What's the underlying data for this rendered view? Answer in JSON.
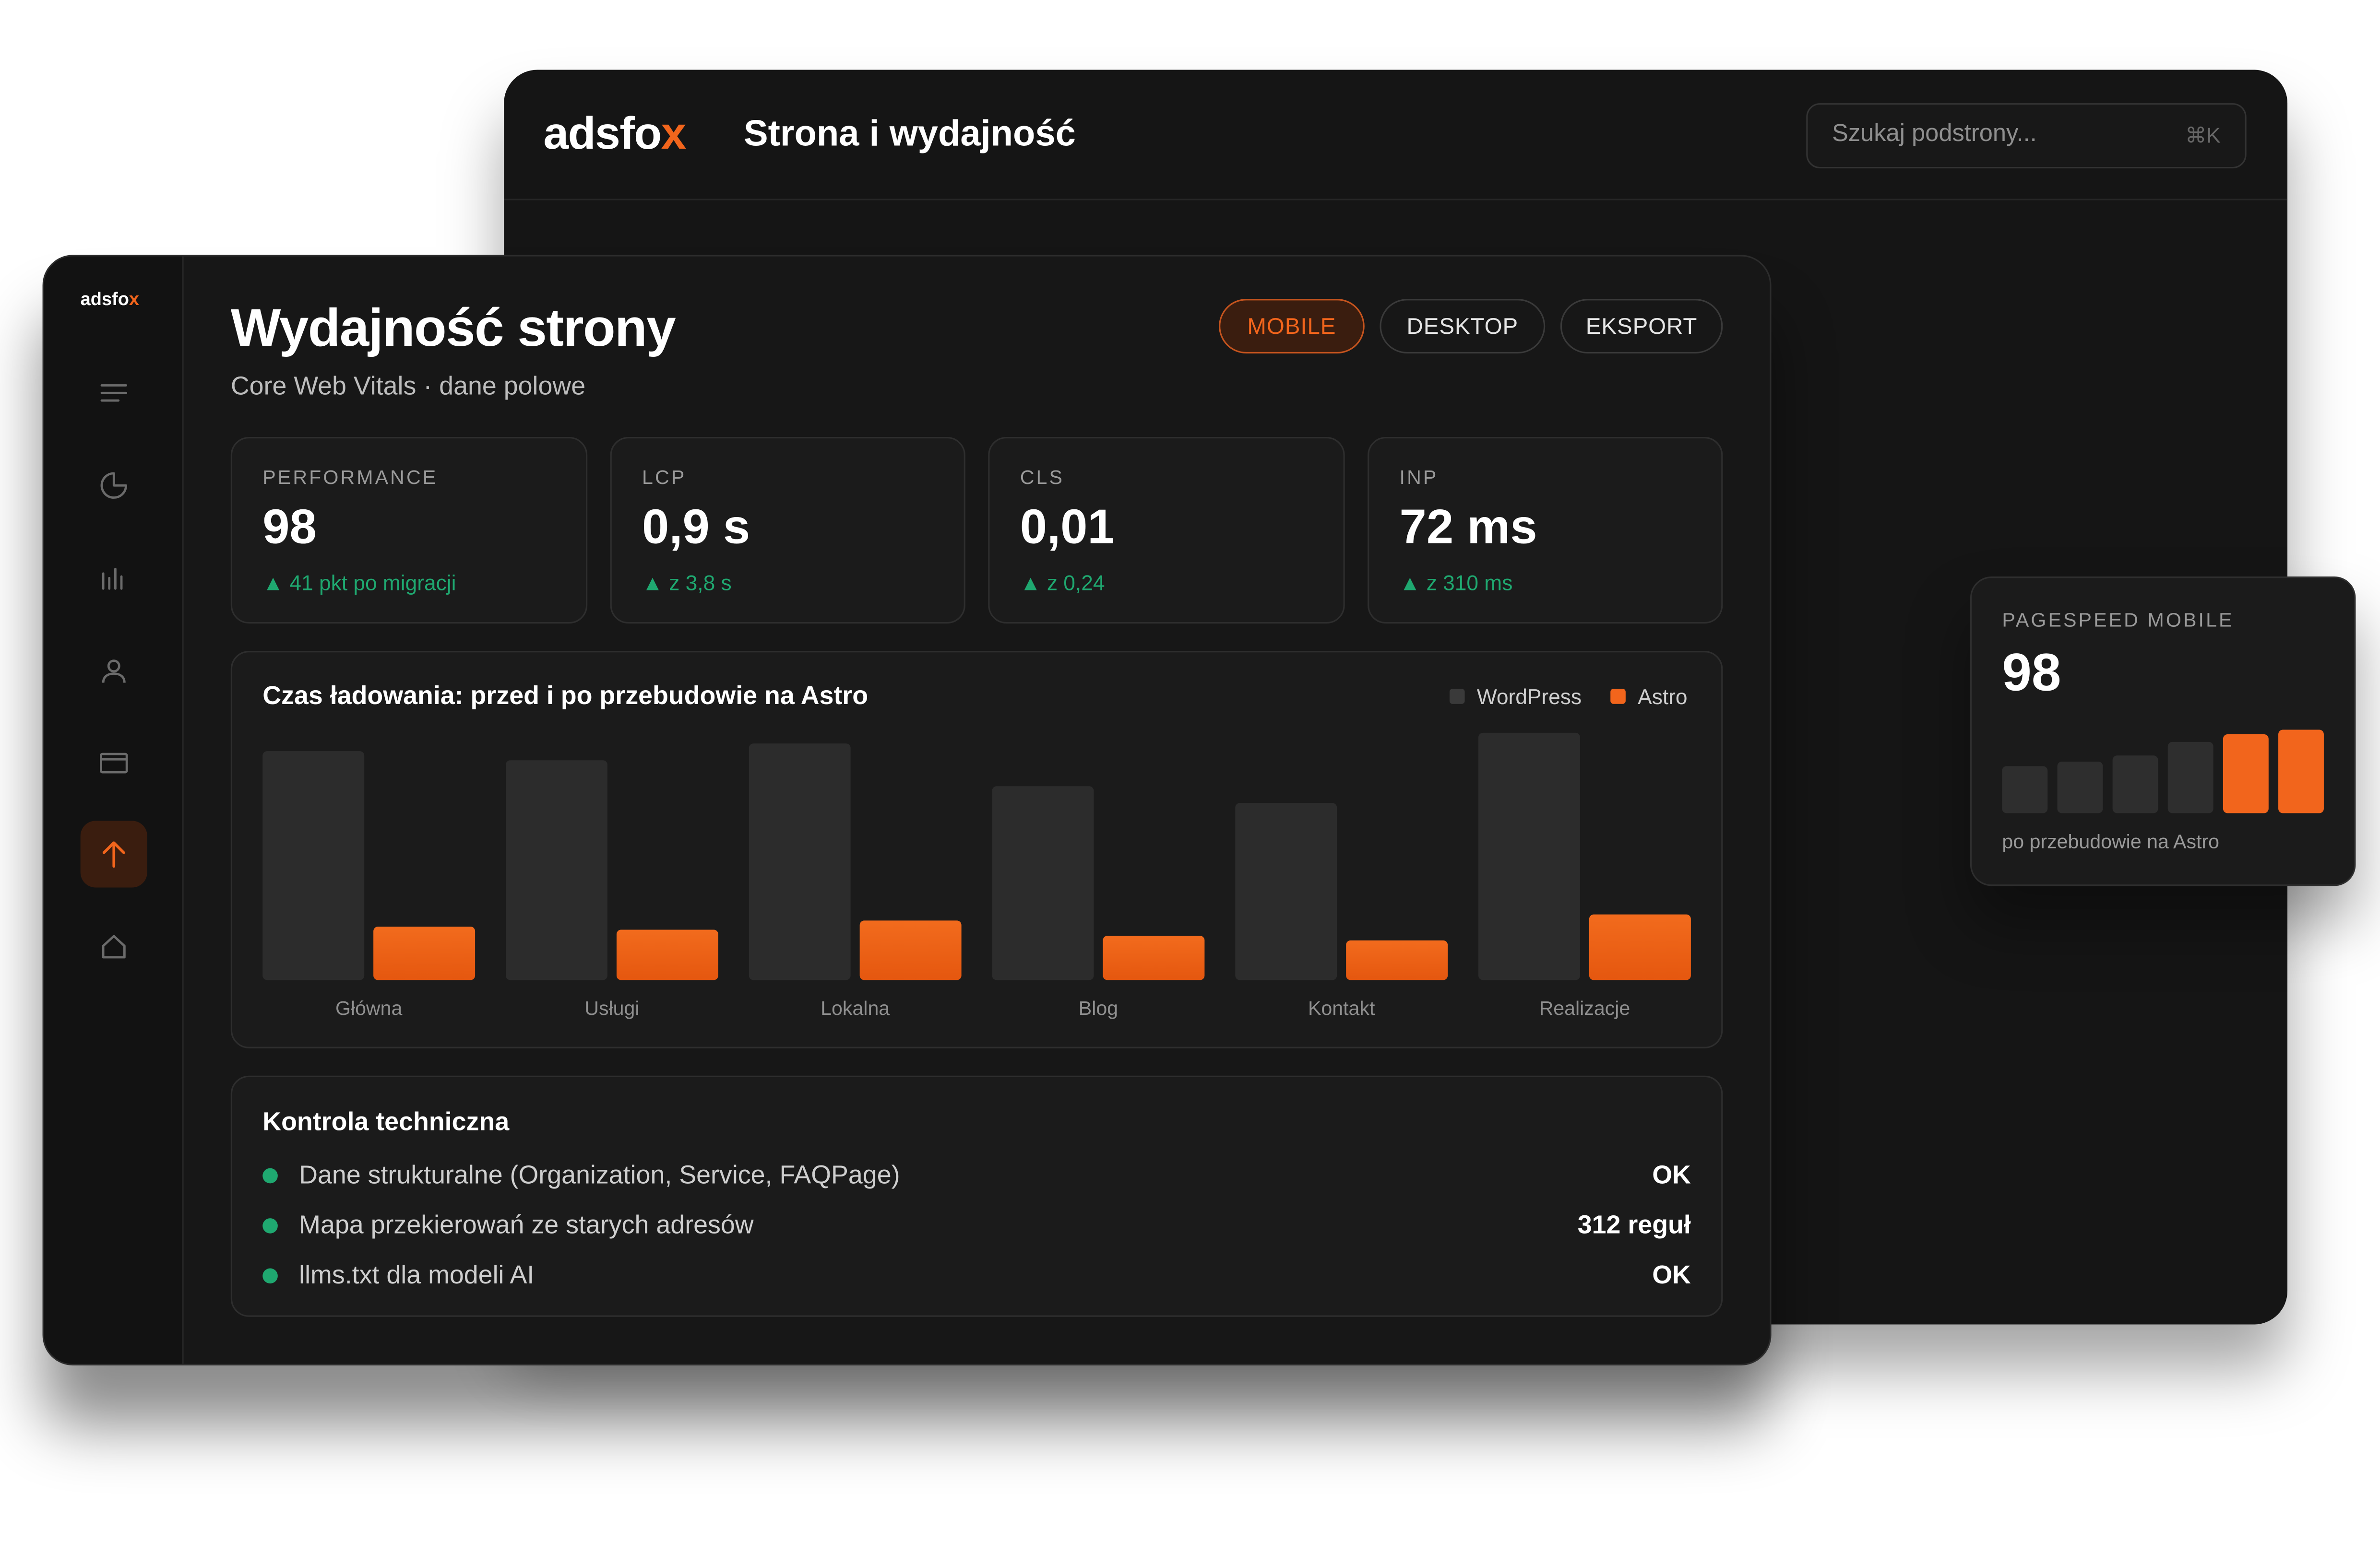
{
  "brand": {
    "logo_text": "adsfox"
  },
  "back_window": {
    "title": "Strona i wydajność",
    "search": {
      "placeholder": "Szukaj podstrony...",
      "shortcut": "⌘K"
    }
  },
  "sidebar": {
    "items": [
      {
        "icon": "menu-icon",
        "active": false
      },
      {
        "icon": "pie-chart-icon",
        "active": false
      },
      {
        "icon": "bar-chart-icon",
        "active": false
      },
      {
        "icon": "user-icon",
        "active": false
      },
      {
        "icon": "browser-window-icon",
        "active": false
      },
      {
        "icon": "arrow-up-icon",
        "active": true
      },
      {
        "icon": "home-icon",
        "active": false
      }
    ]
  },
  "header": {
    "title": "Wydajność strony",
    "subtitle": "Core Web Vitals · dane polowe",
    "buttons": [
      {
        "label": "MOBILE",
        "active": true
      },
      {
        "label": "DESKTOP",
        "active": false
      },
      {
        "label": "EKSPORT",
        "active": false
      }
    ]
  },
  "kpis": [
    {
      "label": "PERFORMANCE",
      "value": "98",
      "delta": "▲ 41 pkt po migracji"
    },
    {
      "label": "LCP",
      "value": "0,9 s",
      "delta": "▲ z 3,8 s"
    },
    {
      "label": "CLS",
      "value": "0,01",
      "delta": "▲ z 0,24"
    },
    {
      "label": "INP",
      "value": "72 ms",
      "delta": "▲ z 310 ms"
    }
  ],
  "colors": {
    "accent": "#f2651c",
    "positive": "#1fa870",
    "bar_gray": "#2c2c2c"
  },
  "chart_data": {
    "type": "bar",
    "title": "Czas ładowania: przed i po przebudowie na Astro",
    "categories": [
      "Główna",
      "Usługi",
      "Lokalna",
      "Blog",
      "Kontakt",
      "Realizacje"
    ],
    "series": [
      {
        "name": "WordPress",
        "color": "#2c2c2c",
        "values": [
          150,
          144,
          155,
          127,
          116,
          162
        ]
      },
      {
        "name": "Astro",
        "color": "#f2651c",
        "values": [
          35,
          33,
          39,
          29,
          26,
          43
        ]
      }
    ],
    "ylim": [
      0,
      165
    ],
    "legend": "top-right",
    "grid": false
  },
  "checks": {
    "title": "Kontrola techniczna",
    "items": [
      {
        "label": "Dane strukturalne (Organization, Service, FAQPage)",
        "value": "OK"
      },
      {
        "label": "Mapa przekierowań ze starych adresów",
        "value": "312 reguł"
      },
      {
        "label": "llms.txt dla modeli AI",
        "value": "OK"
      }
    ]
  },
  "pagespeed": {
    "label": "PAGESPEED MOBILE",
    "value": "98",
    "caption": "po przebudowie na Astro",
    "bar_values": [
      31,
      34,
      38,
      47,
      52,
      55
    ],
    "bar_highlight": [
      false,
      false,
      false,
      false,
      true,
      true
    ]
  }
}
